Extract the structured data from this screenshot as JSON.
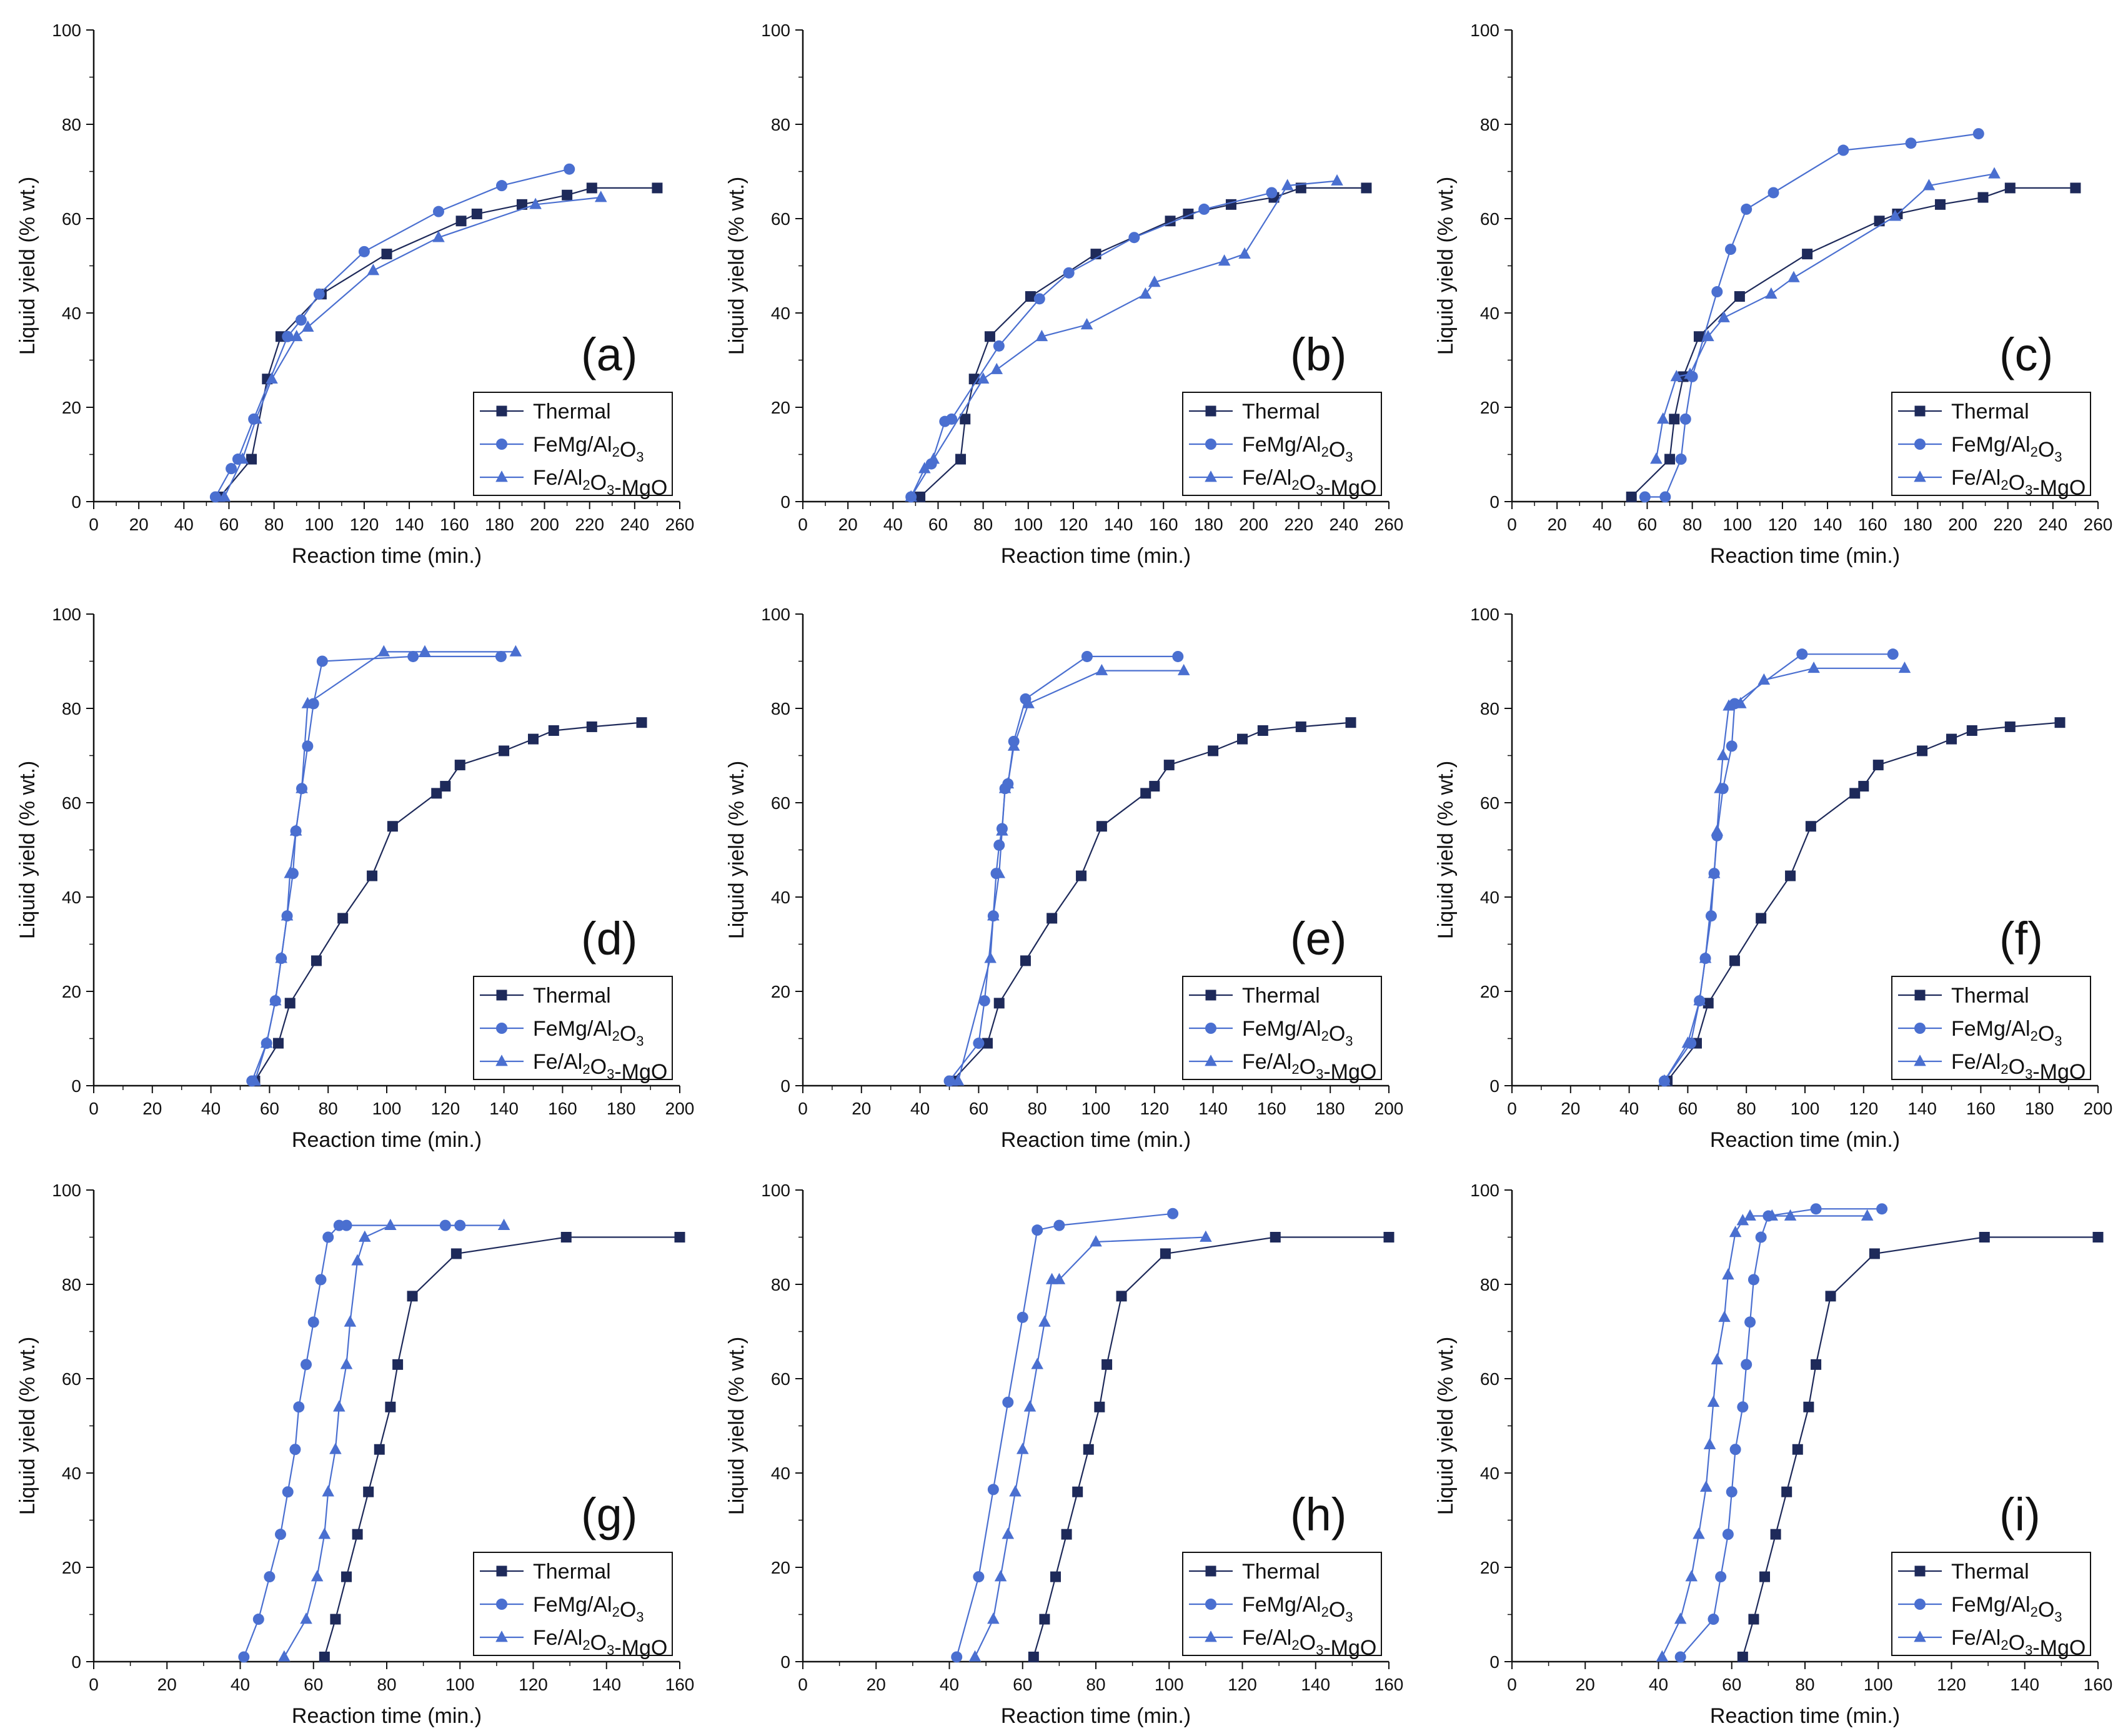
{
  "figure": {
    "colors": {
      "thermal": "#1e2a5a",
      "femg": "#4a6fd0",
      "fe_al_mgo": "#4a6fd0"
    }
  },
  "chart_data": [
    {
      "panel": "(a)",
      "type": "line",
      "xlabel": "Reaction time (min.)",
      "ylabel": "Liquid yield (% wt.)",
      "xlim": [
        0,
        260
      ],
      "ylim": [
        0,
        100
      ],
      "xticks": [
        0,
        20,
        40,
        60,
        80,
        100,
        120,
        140,
        160,
        180,
        200,
        220,
        240,
        260
      ],
      "yticks": [
        0,
        20,
        40,
        60,
        80,
        100
      ],
      "series": [
        {
          "name": "Thermal",
          "marker": "square",
          "x": [
            56,
            70,
            77,
            83,
            101,
            130,
            163,
            170,
            190,
            210,
            221,
            250
          ],
          "y": [
            1,
            9,
            26,
            35,
            44,
            52.5,
            59.5,
            61,
            63,
            65,
            66.5,
            66.5
          ]
        },
        {
          "name": "FeMg/Al2O3",
          "marker": "circle",
          "x": [
            54,
            61,
            64,
            71,
            86,
            92,
            100,
            120,
            153,
            181,
            211
          ],
          "y": [
            1,
            7,
            9,
            17.5,
            35,
            38.5,
            44,
            53,
            61.5,
            67,
            70.5
          ]
        },
        {
          "name": "Fe/Al2O3-MgO",
          "marker": "triangle",
          "x": [
            58,
            66,
            72,
            79,
            90,
            95,
            124,
            153,
            196,
            225
          ],
          "y": [
            1,
            9,
            17.5,
            26,
            35,
            37,
            49,
            56,
            63,
            64.5
          ]
        }
      ]
    },
    {
      "panel": "(d)",
      "type": "line",
      "xlabel": "Reaction time (min.)",
      "ylabel": "Liquid yield (% wt.)",
      "xlim": [
        0,
        200
      ],
      "ylim": [
        0,
        100
      ],
      "xticks": [
        0,
        20,
        40,
        60,
        80,
        100,
        120,
        140,
        160,
        180,
        200
      ],
      "yticks": [
        0,
        20,
        40,
        60,
        80,
        100
      ],
      "series": [
        {
          "name": "Thermal",
          "marker": "square",
          "x": [
            55,
            63,
            67,
            76,
            85,
            95,
            102,
            117,
            120,
            125,
            140,
            150,
            157,
            170,
            187
          ],
          "y": [
            1,
            9,
            17.5,
            26.5,
            35.5,
            44.5,
            55,
            62,
            63.5,
            68,
            71,
            73.5,
            75.3,
            76.1,
            77
          ]
        },
        {
          "name": "FeMg/Al2O3",
          "marker": "circle",
          "x": [
            54,
            59,
            62,
            64,
            66,
            68,
            69,
            71,
            73,
            75,
            78,
            109,
            139
          ],
          "y": [
            1,
            9,
            18,
            27,
            36,
            45,
            54,
            63,
            72,
            81,
            90,
            91,
            91
          ]
        },
        {
          "name": "Fe/Al2O3-MgO",
          "marker": "triangle",
          "x": [
            55,
            59,
            62,
            64,
            66,
            67,
            69,
            71,
            73,
            99,
            113,
            144
          ],
          "y": [
            1,
            9,
            18,
            27,
            36,
            45,
            54,
            63,
            81,
            92,
            92,
            92
          ]
        }
      ]
    },
    {
      "panel": "(g)",
      "type": "line",
      "xlabel": "Reaction time (min.)",
      "ylabel": "Liquid yield (% wt.)",
      "xlim": [
        0,
        160
      ],
      "ylim": [
        0,
        100
      ],
      "xticks": [
        0,
        20,
        40,
        60,
        80,
        100,
        120,
        140,
        160
      ],
      "yticks": [
        0,
        20,
        40,
        60,
        80,
        100
      ],
      "series": [
        {
          "name": "Thermal",
          "marker": "square",
          "x": [
            63,
            66,
            69,
            72,
            75,
            78,
            81,
            83,
            87,
            99,
            129,
            160
          ],
          "y": [
            1,
            9,
            18,
            27,
            36,
            45,
            54,
            63,
            77.5,
            86.5,
            90,
            90
          ]
        },
        {
          "name": "FeMg/Al2O3",
          "marker": "circle",
          "x": [
            41,
            45,
            48,
            51,
            53,
            55,
            56,
            58,
            60,
            62,
            64,
            67,
            69,
            96,
            100
          ],
          "y": [
            1,
            9,
            18,
            27,
            36,
            45,
            54,
            63,
            72,
            81,
            90,
            92.5,
            92.5,
            92.5,
            92.5
          ]
        },
        {
          "name": "Fe/Al2O3-MgO",
          "marker": "triangle",
          "x": [
            52,
            58,
            61,
            63,
            64,
            66,
            67,
            69,
            70,
            72,
            74,
            81,
            112
          ],
          "y": [
            1,
            9,
            18,
            27,
            36,
            45,
            54,
            63,
            72,
            85,
            90,
            92.5,
            92.5
          ]
        }
      ]
    },
    {
      "panel": "(b)",
      "type": "line",
      "xlabel": "Reaction time (min.)",
      "ylabel": "Liquid yield (% wt.)",
      "xlim": [
        0,
        260
      ],
      "ylim": [
        0,
        100
      ],
      "xticks": [
        0,
        20,
        40,
        60,
        80,
        100,
        120,
        140,
        160,
        180,
        200,
        220,
        240,
        260
      ],
      "yticks": [
        0,
        20,
        40,
        60,
        80,
        100
      ],
      "series": [
        {
          "name": "Thermal",
          "marker": "square",
          "x": [
            52,
            70,
            72,
            76,
            83,
            101,
            130,
            163,
            171,
            190,
            209,
            221,
            250
          ],
          "y": [
            1,
            9,
            17.5,
            26,
            35,
            43.5,
            52.5,
            59.5,
            61,
            63,
            64.5,
            66.5,
            66.5
          ]
        },
        {
          "name": "FeMg/Al2O3",
          "marker": "circle",
          "x": [
            48,
            57,
            63,
            66,
            87,
            105,
            118,
            147,
            178,
            208
          ],
          "y": [
            1,
            8,
            17,
            17.5,
            33,
            43,
            48.5,
            56,
            62,
            65.5
          ]
        },
        {
          "name": "Fe/Al2O3-MgO",
          "marker": "triangle",
          "x": [
            48,
            54,
            58,
            80,
            86,
            106,
            126,
            152,
            156,
            187,
            196,
            215,
            237
          ],
          "y": [
            1,
            7,
            9,
            26,
            28,
            35,
            37.5,
            44,
            46.5,
            51,
            52.5,
            67,
            68
          ]
        }
      ]
    },
    {
      "panel": "(e)",
      "type": "line",
      "xlabel": "Reaction time (min.)",
      "ylabel": "Liquid yield (% wt.)",
      "xlim": [
        0,
        200
      ],
      "ylim": [
        0,
        100
      ],
      "xticks": [
        0,
        20,
        40,
        60,
        80,
        100,
        120,
        140,
        160,
        180,
        200
      ],
      "yticks": [
        0,
        20,
        40,
        60,
        80,
        100
      ],
      "series": [
        {
          "name": "Thermal",
          "marker": "square",
          "x": [
            51,
            63,
            67,
            76,
            85,
            95,
            102,
            117,
            120,
            125,
            140,
            150,
            157,
            170,
            187
          ],
          "y": [
            1,
            9,
            17.5,
            26.5,
            35.5,
            44.5,
            55,
            62,
            63.5,
            68,
            71,
            73.5,
            75.3,
            76.1,
            77
          ]
        },
        {
          "name": "FeMg/Al2O3",
          "marker": "circle",
          "x": [
            50,
            60,
            62,
            65,
            66,
            67,
            68,
            69,
            70,
            72,
            76,
            97,
            128
          ],
          "y": [
            1,
            9,
            18,
            36,
            45,
            51,
            54.5,
            63,
            64,
            73,
            82,
            91,
            91
          ]
        },
        {
          "name": "Fe/Al2O3-MgO",
          "marker": "triangle",
          "x": [
            53,
            64,
            65,
            67,
            68,
            69,
            70,
            72,
            77,
            102,
            130
          ],
          "y": [
            1,
            27,
            36,
            45,
            54,
            63,
            64,
            72,
            81,
            88,
            88
          ]
        }
      ]
    },
    {
      "panel": "(h)",
      "type": "line",
      "xlabel": "Reaction time (min.)",
      "ylabel": "Liquid yield (% wt.)",
      "xlim": [
        0,
        160
      ],
      "ylim": [
        0,
        100
      ],
      "xticks": [
        0,
        20,
        40,
        60,
        80,
        100,
        120,
        140,
        160
      ],
      "yticks": [
        0,
        20,
        40,
        60,
        80,
        100
      ],
      "series": [
        {
          "name": "Thermal",
          "marker": "square",
          "x": [
            63,
            66,
            69,
            72,
            75,
            78,
            81,
            83,
            87,
            99,
            129,
            160
          ],
          "y": [
            1,
            9,
            18,
            27,
            36,
            45,
            54,
            63,
            77.5,
            86.5,
            90,
            90
          ]
        },
        {
          "name": "FeMg/Al2O3",
          "marker": "circle",
          "x": [
            42,
            48,
            52,
            56,
            60,
            64,
            70,
            101
          ],
          "y": [
            1,
            18,
            36.5,
            55,
            73,
            91.5,
            92.5,
            95
          ]
        },
        {
          "name": "Fe/Al2O3-MgO",
          "marker": "triangle",
          "x": [
            47,
            52,
            54,
            56,
            58,
            60,
            62,
            64,
            66,
            68,
            70,
            80,
            110
          ],
          "y": [
            1,
            9,
            18,
            27,
            36,
            45,
            54,
            63,
            72,
            81,
            81,
            89,
            90
          ]
        }
      ]
    },
    {
      "panel": "(c)",
      "type": "line",
      "xlabel": "Reaction time (min.)",
      "ylabel": "Liquid yield (% wt.)",
      "xlim": [
        0,
        260
      ],
      "ylim": [
        0,
        100
      ],
      "xticks": [
        0,
        20,
        40,
        60,
        80,
        100,
        120,
        140,
        160,
        180,
        200,
        220,
        240,
        260
      ],
      "yticks": [
        0,
        20,
        40,
        60,
        80,
        100
      ],
      "series": [
        {
          "name": "Thermal",
          "marker": "square",
          "x": [
            53,
            70,
            72,
            76,
            83,
            101,
            131,
            163,
            171,
            190,
            209,
            221,
            250
          ],
          "y": [
            1,
            9,
            17.5,
            26.5,
            35,
            43.5,
            52.5,
            59.5,
            61,
            63,
            64.5,
            66.5,
            66.5
          ]
        },
        {
          "name": "FeMg/Al2O3",
          "marker": "circle",
          "x": [
            59,
            68,
            75,
            77,
            80,
            91,
            97,
            104,
            116,
            147,
            177,
            207
          ],
          "y": [
            1,
            1,
            9,
            17.5,
            26.5,
            44.5,
            53.5,
            62,
            65.5,
            74.5,
            76,
            78
          ]
        },
        {
          "name": "Fe/Al2O3-MgO",
          "marker": "triangle",
          "x": [
            64,
            67,
            73,
            79,
            87,
            94,
            115,
            125,
            170,
            185,
            214
          ],
          "y": [
            9,
            17.5,
            26.5,
            27,
            35,
            39,
            44,
            47.5,
            60.5,
            67,
            69.5
          ]
        }
      ]
    },
    {
      "panel": "(f)",
      "type": "line",
      "xlabel": "Reaction time (min.)",
      "ylabel": "Liquid yield (% wt.)",
      "xlim": [
        0,
        200
      ],
      "ylim": [
        0,
        100
      ],
      "xticks": [
        0,
        20,
        40,
        60,
        80,
        100,
        120,
        140,
        160,
        180,
        200
      ],
      "yticks": [
        0,
        20,
        40,
        60,
        80,
        100
      ],
      "series": [
        {
          "name": "Thermal",
          "marker": "square",
          "x": [
            53,
            63,
            67,
            76,
            85,
            95,
            102,
            117,
            120,
            125,
            140,
            150,
            157,
            170,
            187
          ],
          "y": [
            1,
            9,
            17.5,
            26.5,
            35.5,
            44.5,
            55,
            62,
            63.5,
            68,
            71,
            73.5,
            75.3,
            76.1,
            77
          ]
        },
        {
          "name": "FeMg/Al2O3",
          "marker": "circle",
          "x": [
            52,
            61,
            64,
            66,
            68,
            69,
            70,
            72,
            75,
            76,
            99,
            130
          ],
          "y": [
            1,
            9,
            18,
            27,
            36,
            45,
            53,
            63,
            72,
            81,
            91.5,
            91.5
          ]
        },
        {
          "name": "Fe/Al2O3-MgO",
          "marker": "triangle",
          "x": [
            52,
            60,
            64,
            66,
            69,
            70,
            71,
            72,
            74,
            78,
            86,
            103,
            134
          ],
          "y": [
            1,
            9,
            18,
            27,
            45,
            54,
            63,
            70,
            80.5,
            81,
            86,
            88.5,
            88.5
          ]
        }
      ]
    },
    {
      "panel": "(i)",
      "type": "line",
      "xlabel": "Reaction time (min.)",
      "ylabel": "Liquid yield (% wt.)",
      "xlim": [
        0,
        160
      ],
      "ylim": [
        0,
        100
      ],
      "xticks": [
        0,
        20,
        40,
        60,
        80,
        100,
        120,
        140,
        160
      ],
      "yticks": [
        0,
        20,
        40,
        60,
        80,
        100
      ],
      "series": [
        {
          "name": "Thermal",
          "marker": "square",
          "x": [
            63,
            66,
            69,
            72,
            75,
            78,
            81,
            83,
            87,
            99,
            129,
            160
          ],
          "y": [
            1,
            9,
            18,
            27,
            36,
            45,
            54,
            63,
            77.5,
            86.5,
            90,
            90
          ]
        },
        {
          "name": "FeMg/Al2O3",
          "marker": "circle",
          "x": [
            46,
            55,
            57,
            59,
            60,
            61,
            63,
            64,
            65,
            66,
            68,
            70,
            83,
            101
          ],
          "y": [
            1,
            9,
            18,
            27,
            36,
            45,
            54,
            63,
            72,
            81,
            90,
            94.5,
            96,
            96
          ]
        },
        {
          "name": "Fe/Al2O3-MgO",
          "marker": "triangle",
          "x": [
            41,
            46,
            49,
            51,
            53,
            54,
            55,
            56,
            58,
            59,
            61,
            63,
            65,
            71,
            76,
            97
          ],
          "y": [
            1,
            9,
            18,
            27,
            37,
            46,
            55,
            64,
            73,
            82,
            91,
            93.5,
            94.5,
            94.5,
            94.5,
            94.5
          ]
        }
      ]
    }
  ]
}
